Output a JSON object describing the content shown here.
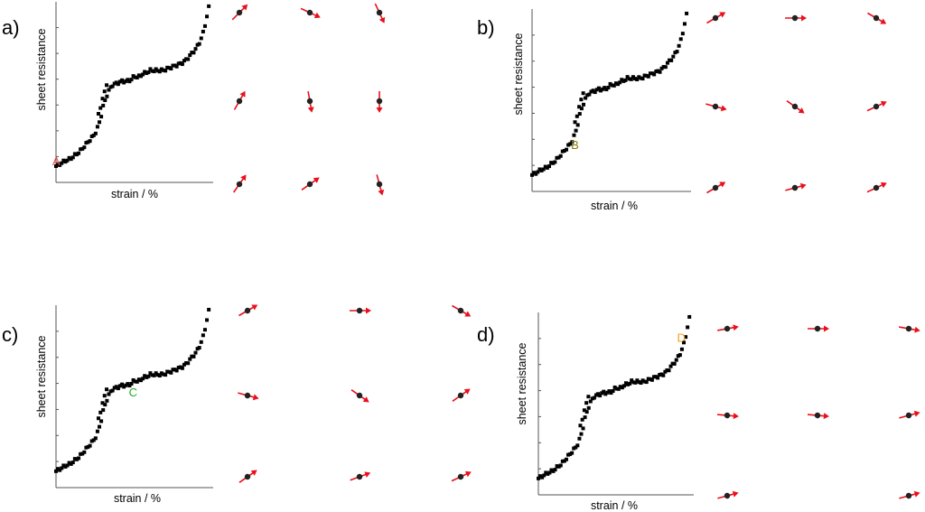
{
  "figure": {
    "panel_labels": [
      "a)",
      "b)",
      "c)",
      "d)"
    ],
    "colors": {
      "data": "#000000",
      "arrow": "#e8101c",
      "dot": "#222222",
      "axis": "#555555"
    }
  },
  "chart_data": [
    {
      "type": "scatter",
      "panel": "a)",
      "xlabel": "strain / %",
      "ylabel": "sheet resistance",
      "marker": {
        "label": "A",
        "x": 0.1,
        "y": 9.5,
        "color": "#e85050"
      },
      "spin_angles_deg": [
        -45,
        25,
        65,
        -60,
        80,
        90,
        -55,
        -35,
        75
      ]
    },
    {
      "type": "scatter",
      "panel": "b)",
      "xlabel": "strain / %",
      "ylabel": "sheet resistance",
      "marker": {
        "label": "B",
        "x": 27,
        "y": 23.2,
        "color": "#8a7a10"
      },
      "spin_angles_deg": [
        -30,
        0,
        30,
        15,
        35,
        -25,
        -30,
        -15,
        -25
      ]
    },
    {
      "type": "scatter",
      "panel": "c)",
      "xlabel": "strain / %",
      "ylabel": "sheet resistance",
      "marker": {
        "label": "C",
        "x": 49,
        "y": 50,
        "color": "#22aa22"
      },
      "spin_angles_deg": [
        -30,
        0,
        30,
        15,
        35,
        -35,
        -35,
        -20,
        -25
      ]
    },
    {
      "type": "scatter",
      "panel": "d)",
      "xlabel": "strain / %",
      "ylabel": "sheet resistance",
      "marker": {
        "label": "D",
        "x": 92,
        "y": 84,
        "color": "#f0a020"
      },
      "spin_angles_deg": [
        -10,
        0,
        10,
        5,
        5,
        -15,
        -15,
        -15
      ]
    }
  ],
  "curve": {
    "x": [
      0,
      6,
      9,
      12,
      15,
      18,
      21,
      24,
      26,
      27,
      28,
      30,
      33,
      36,
      39,
      42,
      45,
      48,
      50,
      52,
      55,
      58,
      60,
      62,
      65,
      68,
      71,
      74,
      77,
      80,
      83,
      85,
      87,
      89,
      91,
      93,
      94,
      95,
      96,
      97,
      98
    ],
    "y": [
      9,
      12,
      13,
      15,
      17,
      20,
      23,
      26,
      29,
      32,
      34,
      42,
      50,
      54,
      55,
      56,
      56,
      57,
      59,
      58,
      60,
      61,
      62,
      62,
      62,
      62,
      63,
      64,
      65,
      66,
      68,
      70,
      72,
      74,
      77,
      81,
      84,
      88,
      92,
      96,
      100
    ]
  }
}
